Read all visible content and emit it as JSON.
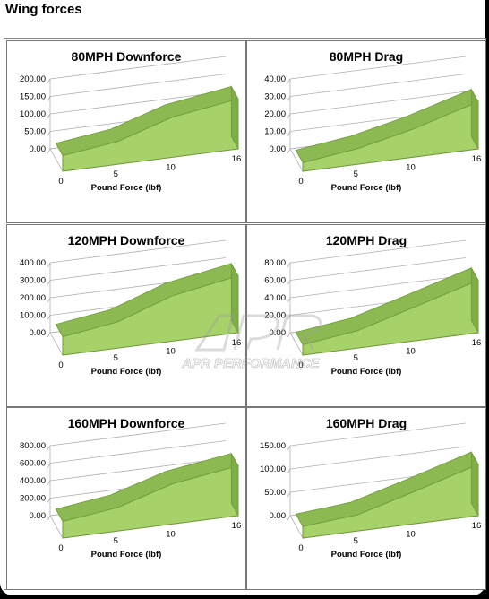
{
  "page": {
    "title": "Wing forces"
  },
  "watermark": {
    "text": "APR PERFORMANCE"
  },
  "colors": {
    "area_fill": "#a7d26a",
    "area_edge": "#6f9a3b",
    "area_side": "#8db953",
    "grid": "#b0b0b0"
  },
  "chart_data": [
    {
      "type": "area",
      "title": "80MPH Downforce",
      "xlabel": "Pound Force (lbf)",
      "ylabel": "",
      "x": [
        0,
        5,
        10,
        16
      ],
      "values": [
        45,
        65,
        115,
        143
      ],
      "ylim": [
        0,
        200
      ],
      "yticks": [
        "0.00",
        "50.00",
        "100.00",
        "150.00",
        "200.00"
      ],
      "xticks": [
        "0",
        "5",
        "10",
        "16"
      ],
      "grid": true
    },
    {
      "type": "area",
      "title": "80MPH Drag",
      "xlabel": "Pound Force (lbf)",
      "ylabel": "",
      "x": [
        0,
        5,
        10,
        16
      ],
      "values": [
        5,
        9,
        16,
        27
      ],
      "ylim": [
        0,
        40
      ],
      "yticks": [
        "0.00",
        "10.00",
        "20.00",
        "30.00",
        "40.00"
      ],
      "xticks": [
        "0",
        "5",
        "10",
        "16"
      ],
      "grid": true
    },
    {
      "type": "area",
      "title": "120MPH Downforce",
      "xlabel": "Pound Force (lbf)",
      "ylabel": "",
      "x": [
        0,
        5,
        10,
        16
      ],
      "values": [
        105,
        150,
        260,
        325
      ],
      "ylim": [
        0,
        400
      ],
      "yticks": [
        "0.00",
        "100.00",
        "200.00",
        "300.00",
        "400.00"
      ],
      "xticks": [
        "0",
        "5",
        "10",
        "16"
      ],
      "grid": true
    },
    {
      "type": "area",
      "title": "120MPH Drag",
      "xlabel": "Pound Force (lbf)",
      "ylabel": "",
      "x": [
        0,
        5,
        10,
        16
      ],
      "values": [
        12,
        20,
        38,
        60
      ],
      "ylim": [
        0,
        80
      ],
      "yticks": [
        "0.00",
        "20.00",
        "40.00",
        "60.00",
        "80.00"
      ],
      "xticks": [
        "0",
        "5",
        "10",
        "16"
      ],
      "grid": true
    },
    {
      "type": "area",
      "title": "160MPH Downforce",
      "xlabel": "Pound Force (lbf)",
      "ylabel": "",
      "x": [
        0,
        5,
        10,
        16
      ],
      "values": [
        190,
        270,
        460,
        570
      ],
      "ylim": [
        0,
        800
      ],
      "yticks": [
        "0.00",
        "200.00",
        "400.00",
        "600.00",
        "800.00"
      ],
      "xticks": [
        "0",
        "5",
        "10",
        "16"
      ],
      "grid": true
    },
    {
      "type": "area",
      "title": "160MPH Drag",
      "xlabel": "Pound Force (lbf)",
      "ylabel": "",
      "x": [
        0,
        5,
        10,
        16
      ],
      "values": [
        25,
        35,
        68,
        110
      ],
      "ylim": [
        0,
        150
      ],
      "yticks": [
        "0.00",
        "50.00",
        "100.00",
        "150.00"
      ],
      "xticks": [
        "0",
        "5",
        "10",
        "16"
      ],
      "grid": true
    }
  ]
}
